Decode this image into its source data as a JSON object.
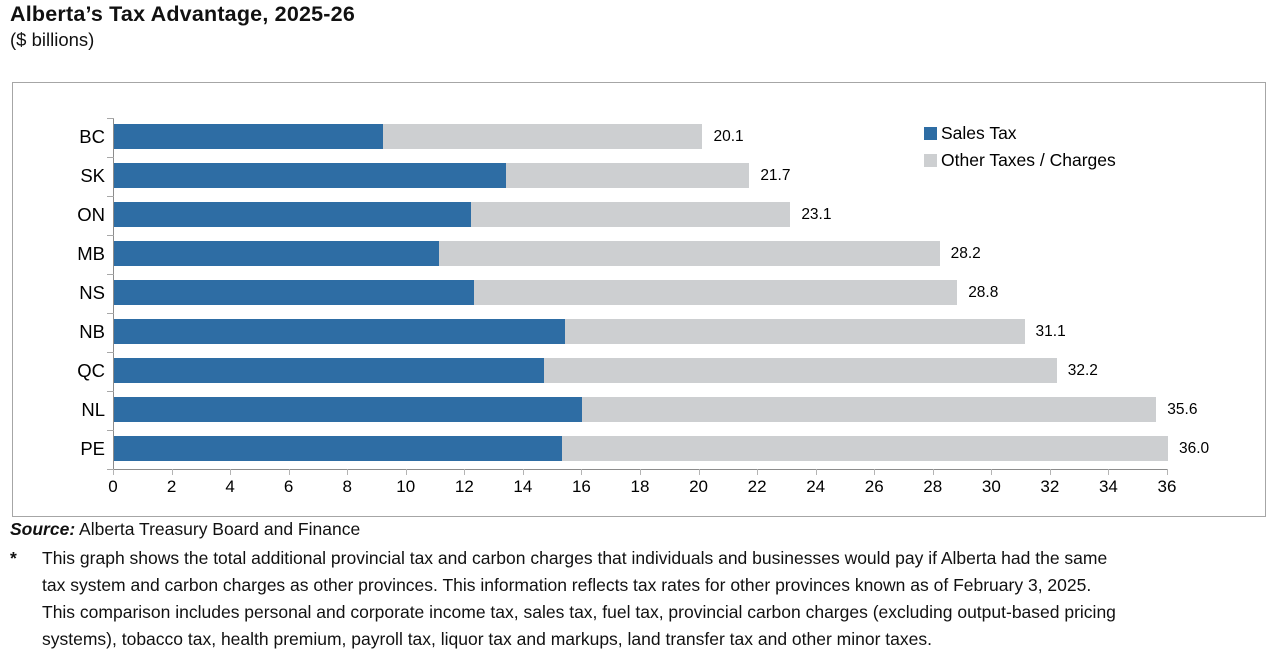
{
  "title": "Alberta’s Tax Advantage, 2025-26",
  "subtitle": "($ billions)",
  "colors": {
    "sales_tax": "#2E6DA4",
    "other_taxes": "#CDCFD1",
    "axis": "#8C8C8C",
    "box_border": "#A6A6A6"
  },
  "legend": [
    {
      "label": "Sales Tax",
      "color": "#2E6DA4",
      "swatch": "blue-square-icon"
    },
    {
      "label": "Other Taxes / Charges",
      "color": "#CDCFD1",
      "swatch": "gray-square-icon"
    }
  ],
  "chart_data": {
    "type": "bar",
    "orientation": "horizontal",
    "title": "Alberta’s Tax Advantage, 2025-26",
    "units": "$ billions",
    "categories": [
      "BC",
      "SK",
      "ON",
      "MB",
      "NS",
      "NB",
      "QC",
      "NL",
      "PE"
    ],
    "series": [
      {
        "name": "Sales Tax",
        "color": "#2E6DA4",
        "values": [
          9.2,
          13.4,
          12.2,
          11.1,
          12.3,
          15.4,
          14.7,
          16.0,
          15.3
        ]
      },
      {
        "name": "Other Taxes / Charges",
        "color": "#CDCFD1",
        "values": [
          10.9,
          8.3,
          10.9,
          17.1,
          16.5,
          15.7,
          17.5,
          19.6,
          20.7
        ]
      }
    ],
    "totals": [
      20.1,
      21.7,
      23.1,
      28.2,
      28.8,
      31.1,
      32.2,
      35.6,
      36.0
    ],
    "total_labels": [
      "20.1",
      "21.7",
      "23.1",
      "28.2",
      "28.8",
      "31.1",
      "32.2",
      "35.6",
      "36.0"
    ],
    "xlim": [
      0,
      36
    ],
    "xticks": [
      0,
      2,
      4,
      6,
      8,
      10,
      12,
      14,
      16,
      18,
      20,
      22,
      24,
      26,
      28,
      30,
      32,
      34,
      36
    ],
    "grid": false,
    "legend_position": "top-right"
  },
  "footer": {
    "source_label": "Source:",
    "source_text": " Alberta Treasury Board and Finance",
    "footnote_marker": "*",
    "footnote_lines": [
      "This graph shows the total additional provincial tax and carbon charges that individuals and businesses would pay if Alberta had the same",
      "tax system and carbon charges as other provinces. This information reflects tax rates for other provinces known as of February 3, 2025.",
      "This comparison includes personal and corporate income tax, sales tax, fuel tax, provincial carbon charges (excluding output-based pricing",
      "systems), tobacco tax, health premium, payroll tax, liquor tax and markups, land transfer tax and other minor taxes."
    ]
  }
}
